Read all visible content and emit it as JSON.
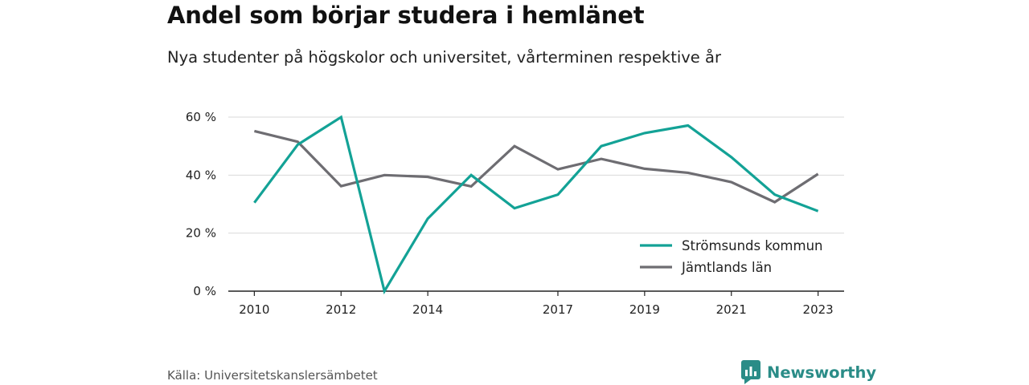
{
  "header": {
    "title": "Andel som börjar studera i hemlänet",
    "subtitle": "Nya studenter på högskolor och universitet, vårterminen respektive år"
  },
  "footer": {
    "source": "Källa: Universitetskanslersämbetet",
    "brand": "Newsworthy",
    "brand_icon": "newsworthy-logo-icon"
  },
  "chart_data": {
    "type": "line",
    "title": "Andel som börjar studera i hemlänet",
    "subtitle": "Nya studenter på högskolor och universitet, vårterminen respektive år",
    "xlabel": "",
    "ylabel": "",
    "x": [
      2010,
      2011,
      2012,
      2013,
      2014,
      2015,
      2016,
      2017,
      2018,
      2019,
      2020,
      2021,
      2022,
      2023
    ],
    "xticks": [
      "2010",
      "2012",
      "2014",
      "2017",
      "2019",
      "2021",
      "2023"
    ],
    "xlim": [
      2009.4,
      2023.6
    ],
    "ylim": [
      0,
      60
    ],
    "yticks": [
      0,
      20,
      40,
      60
    ],
    "yticklabels": [
      "0 %",
      "20 %",
      "40 %",
      "60 %"
    ],
    "grid": true,
    "legend_position": "bottom-right",
    "series": [
      {
        "name": "Strömsunds kommun",
        "color": "#13a296",
        "values": [
          30.5,
          50.5,
          60.0,
          0.0,
          25.0,
          40.0,
          28.6,
          33.3,
          50.0,
          54.5,
          57.1,
          46.2,
          33.3,
          27.6
        ]
      },
      {
        "name": "Jämtlands län",
        "color": "#6e6d72",
        "values": [
          55.2,
          51.5,
          36.2,
          40.0,
          39.4,
          36.1,
          50.0,
          42.0,
          45.6,
          42.2,
          40.8,
          37.6,
          30.7,
          40.4
        ]
      }
    ]
  }
}
